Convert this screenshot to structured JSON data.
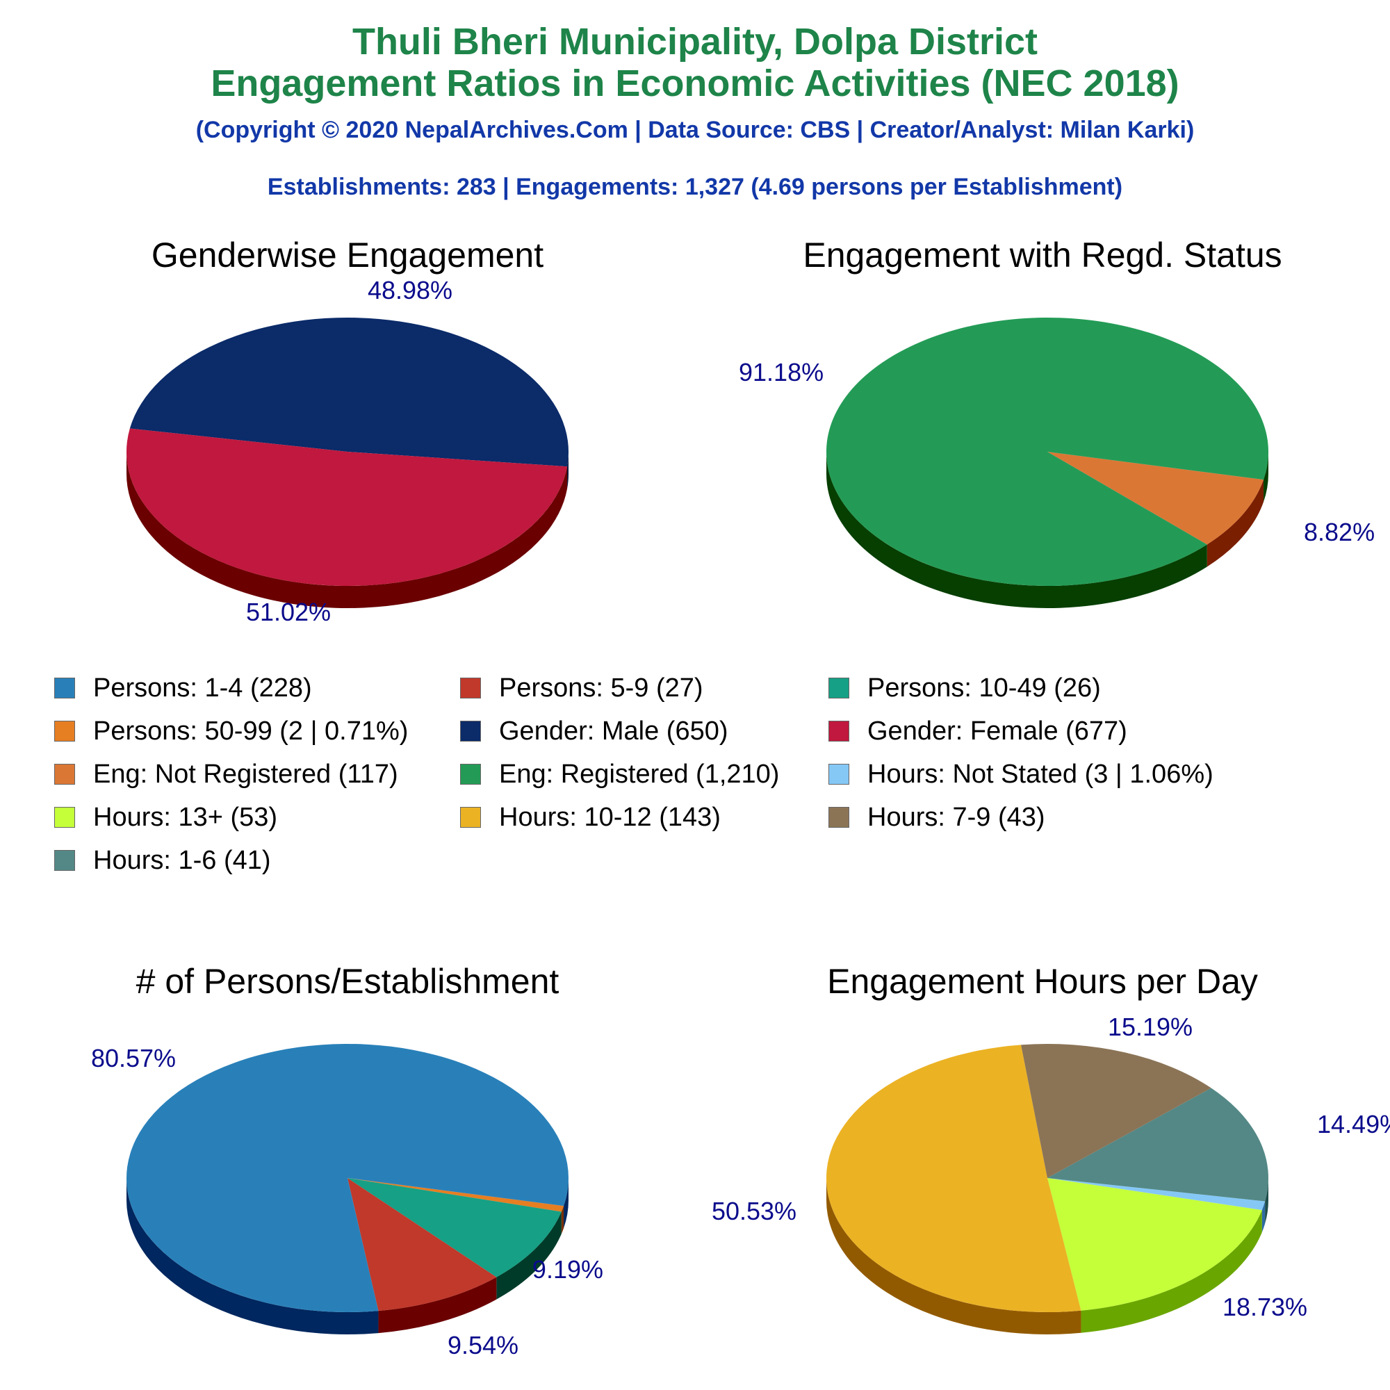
{
  "header": {
    "title_line1": "Thuli Bheri Municipality, Dolpa District",
    "title_line2": "Engagement Ratios in Economic Activities (NEC 2018)",
    "copyright": "(Copyright © 2020 NepalArchives.Com | Data Source: CBS | Creator/Analyst: Milan Karki)",
    "summary": "Establishments: 283 | Engagements: 1,327 (4.69 persons per Establishment)"
  },
  "colors": {
    "title": "#1e8449",
    "subtitle": "#1238a8",
    "pct_label": "#0b0b8c"
  },
  "chart_data": [
    {
      "type": "pie",
      "title": "Genderwise Engagement",
      "slices": [
        {
          "label": "Gender: Male",
          "value": 650,
          "percent_label": "48.98%",
          "color": "#0b2b69",
          "side": "#04143a"
        },
        {
          "label": "Gender: Female",
          "value": 677,
          "percent_label": "51.02%",
          "color": "#c0183e",
          "side": "#6b0000"
        }
      ]
    },
    {
      "type": "pie",
      "title": "Engagement with Regd. Status",
      "slices": [
        {
          "label": "Eng: Not Registered",
          "value": 117,
          "percent_label": "8.82%",
          "color": "#db7735",
          "side": "#7a1f00"
        },
        {
          "label": "Eng: Registered",
          "value": 1210,
          "percent_label": "91.18%",
          "color": "#239b56",
          "side": "#063f00"
        }
      ]
    },
    {
      "type": "pie",
      "title": "# of Persons/Establishment",
      "slices": [
        {
          "label": "Persons: 50-99",
          "value": 2,
          "percent_label": "",
          "color": "#e67e22",
          "side": "#7a3000"
        },
        {
          "label": "Persons: 10-49",
          "value": 26,
          "percent_label": "9.19%",
          "color": "#16a085",
          "side": "#003b2a"
        },
        {
          "label": "Persons: 5-9",
          "value": 27,
          "percent_label": "9.54%",
          "color": "#c0392b",
          "side": "#6b0000"
        },
        {
          "label": "Persons: 1-4",
          "value": 228,
          "percent_label": "80.57%",
          "color": "#2980b9",
          "side": "#00275f"
        }
      ]
    },
    {
      "type": "pie",
      "title": "Engagement Hours per Day",
      "slices": [
        {
          "label": "Hours: Not Stated",
          "value": 3,
          "percent_label": "",
          "color": "#85c8f6",
          "side": "#2d6ba3"
        },
        {
          "label": "Hours: 13+",
          "value": 53,
          "percent_label": "18.73%",
          "color": "#c4ff3a",
          "side": "#6aa600"
        },
        {
          "label": "Hours: 10-12",
          "value": 143,
          "percent_label": "50.53%",
          "color": "#ebb224",
          "side": "#925a00"
        },
        {
          "label": "Hours: 7-9",
          "value": 43,
          "percent_label": "15.19%",
          "color": "#8b7456",
          "side": "#4a3a20"
        },
        {
          "label": "Hours: 1-6",
          "value": 41,
          "percent_label": "14.49%",
          "color": "#538886",
          "side": "#1f4d4b"
        }
      ]
    }
  ],
  "legend": [
    {
      "text": "Persons: 1-4 (228)",
      "color": "#2980b9"
    },
    {
      "text": "Persons: 5-9 (27)",
      "color": "#c0392b"
    },
    {
      "text": "Persons: 10-49 (26)",
      "color": "#16a085"
    },
    {
      "text": "Persons: 50-99 (2 | 0.71%)",
      "color": "#e67e22"
    },
    {
      "text": "Gender: Male (650)",
      "color": "#0b2b69"
    },
    {
      "text": "Gender: Female (677)",
      "color": "#c0183e"
    },
    {
      "text": "Eng: Not Registered (117)",
      "color": "#db7735"
    },
    {
      "text": "Eng: Registered (1,210)",
      "color": "#239b56"
    },
    {
      "text": "Hours: Not Stated (3 | 1.06%)",
      "color": "#85c8f6"
    },
    {
      "text": "Hours: 13+ (53)",
      "color": "#c4ff3a"
    },
    {
      "text": "Hours: 10-12 (143)",
      "color": "#ebb224"
    },
    {
      "text": "Hours: 7-9 (43)",
      "color": "#8b7456"
    },
    {
      "text": "Hours: 1-6 (41)",
      "color": "#538886"
    }
  ]
}
